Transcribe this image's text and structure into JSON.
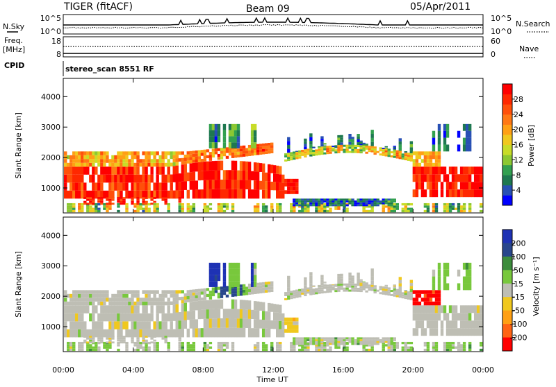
{
  "header": {
    "station": "TIGER (fitACF)",
    "beam": "Beam 09",
    "date": "05/Apr/2011"
  },
  "panels": {
    "nsky": {
      "left_label": "N.Sky",
      "left_ticks": [
        "10^5",
        "10^0"
      ],
      "right_ticks": [
        "10^5",
        "10^0"
      ],
      "right_label": "N.Search"
    },
    "freq": {
      "left_label_1": "Freq.",
      "left_label_2": "[MHz]",
      "left_ticks": [
        "18",
        "8"
      ],
      "right_ticks": [
        "60",
        "0"
      ],
      "right_label": "Nave"
    },
    "cpid": {
      "label": "CPID",
      "text": "stereo_scan 8551 RF"
    }
  },
  "chart_data": [
    {
      "type": "heatmap",
      "name": "power",
      "ylabel": "Slant Range [km]",
      "xlabel": "",
      "x_ticks": [
        "00:00",
        "04:00",
        "08:00",
        "12:00",
        "16:00",
        "20:00",
        "00:00"
      ],
      "y_ticks": [
        "1000",
        "2000",
        "3000",
        "4000"
      ],
      "ylim": [
        180,
        4600
      ],
      "xlim_hours": [
        0,
        24
      ],
      "colorbar": {
        "label": "Power [dB]",
        "ticks": [
          "4",
          "8",
          "12",
          "16",
          "20",
          "24",
          "28"
        ],
        "colors": [
          "#0000ff",
          "#2850b4",
          "#1e7850",
          "#32a050",
          "#8cc832",
          "#c8dc28",
          "#f0c81e",
          "#ffa014",
          "#ff7814",
          "#ff500a",
          "#ff2800",
          "#ff0000"
        ]
      }
    },
    {
      "type": "heatmap",
      "name": "velocity",
      "ylabel": "Slant Range [km]",
      "xlabel": "Time UT",
      "x_ticks": [
        "00:00",
        "04:00",
        "08:00",
        "12:00",
        "16:00",
        "20:00",
        "00:00"
      ],
      "y_ticks": [
        "1000",
        "2000",
        "3000",
        "4000"
      ],
      "ylim": [
        180,
        4600
      ],
      "xlim_hours": [
        0,
        24
      ],
      "colorbar": {
        "label": "Velocity [m s⁻¹]",
        "ticks": [
          "200",
          "100",
          "50",
          "15",
          "-15",
          "-50",
          "-100",
          "-200"
        ],
        "colors": [
          "#1e32b4",
          "#28468c",
          "#3c8c3c",
          "#78c83c",
          "#bebeb4",
          "#f0c81e",
          "#ffa014",
          "#ff6414",
          "#ff0000"
        ]
      }
    }
  ]
}
